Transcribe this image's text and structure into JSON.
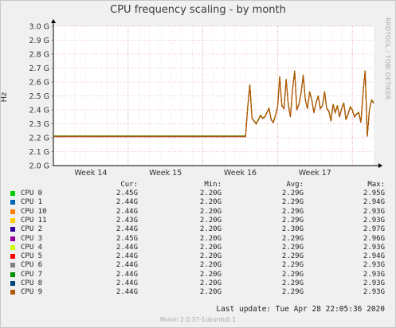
{
  "title": "CPU frequency scaling - by month",
  "side_label": "RRDTOOL / TOBI OETIKER",
  "footer": "Munin 2.0.37-1ubuntu0.1",
  "last_update": "Last update: Tue Apr 28 22:05:36 2020",
  "legend_headers": {
    "cur": "Cur:",
    "min": "Min:",
    "avg": "Avg:",
    "max": "Max:"
  },
  "legend": [
    {
      "name": "CPU 0",
      "color": "#00cc00",
      "cur": "2.45G",
      "min": "2.20G",
      "avg": "2.29G",
      "max": "2.95G"
    },
    {
      "name": "CPU 1",
      "color": "#0066b3",
      "cur": "2.44G",
      "min": "2.20G",
      "avg": "2.29G",
      "max": "2.94G"
    },
    {
      "name": "CPU 10",
      "color": "#ff8000",
      "cur": "2.44G",
      "min": "2.20G",
      "avg": "2.29G",
      "max": "2.93G"
    },
    {
      "name": "CPU 11",
      "color": "#ffcc00",
      "cur": "2.43G",
      "min": "2.20G",
      "avg": "2.29G",
      "max": "2.93G"
    },
    {
      "name": "CPU 2",
      "color": "#330099",
      "cur": "2.44G",
      "min": "2.20G",
      "avg": "2.30G",
      "max": "2.97G"
    },
    {
      "name": "CPU 3",
      "color": "#990099",
      "cur": "2.45G",
      "min": "2.20G",
      "avg": "2.29G",
      "max": "2.96G"
    },
    {
      "name": "CPU 4",
      "color": "#ccff00",
      "cur": "2.44G",
      "min": "2.20G",
      "avg": "2.29G",
      "max": "2.93G"
    },
    {
      "name": "CPU 5",
      "color": "#ff0000",
      "cur": "2.44G",
      "min": "2.20G",
      "avg": "2.29G",
      "max": "2.94G"
    },
    {
      "name": "CPU 6",
      "color": "#808080",
      "cur": "2.44G",
      "min": "2.20G",
      "avg": "2.29G",
      "max": "2.93G"
    },
    {
      "name": "CPU 7",
      "color": "#008f00",
      "cur": "2.44G",
      "min": "2.20G",
      "avg": "2.29G",
      "max": "2.93G"
    },
    {
      "name": "CPU 8",
      "color": "#00487d",
      "cur": "2.44G",
      "min": "2.20G",
      "avg": "2.29G",
      "max": "2.93G"
    },
    {
      "name": "CPU 9",
      "color": "#b35a00",
      "cur": "2.44G",
      "min": "2.20G",
      "avg": "2.29G",
      "max": "2.93G"
    }
  ],
  "chart_data": {
    "type": "line",
    "title": "CPU frequency scaling - by month",
    "ylabel": "Hz",
    "ylim": [
      2.0,
      3.0
    ],
    "yunit": "G",
    "yticks": [
      "2.0 G",
      "2.1 G",
      "2.2 G",
      "2.3 G",
      "2.4 G",
      "2.5 G",
      "2.6 G",
      "2.7 G",
      "2.8 G",
      "2.9 G",
      "3.0 G"
    ],
    "xlim": [
      0,
      30
    ],
    "xticks": [
      {
        "at": 3.5,
        "label": "Week 14"
      },
      {
        "at": 10.5,
        "label": "Week 15"
      },
      {
        "at": 17.5,
        "label": "Week 16"
      },
      {
        "at": 24.5,
        "label": "Week 17"
      }
    ],
    "grid": true,
    "x": [
      0,
      1,
      2,
      3,
      4,
      5,
      6,
      7,
      8,
      9,
      10,
      11,
      12,
      13,
      14,
      15,
      16,
      17,
      18,
      18.2,
      18.4,
      18.6,
      18.8,
      19.0,
      19.2,
      19.4,
      19.6,
      19.8,
      20.0,
      20.2,
      20.4,
      20.6,
      20.8,
      21.0,
      21.2,
      21.4,
      21.6,
      21.8,
      22.0,
      22.2,
      22.4,
      22.6,
      22.8,
      23.0,
      23.2,
      23.4,
      23.6,
      23.8,
      24.0,
      24.2,
      24.4,
      24.6,
      24.8,
      25.0,
      25.2,
      25.4,
      25.6,
      25.8,
      26.0,
      26.2,
      26.4,
      26.6,
      26.8,
      27.0,
      27.2,
      27.4,
      27.6,
      27.8,
      28.0,
      28.2,
      28.4,
      28.6,
      28.8,
      29.0,
      29.2,
      29.4,
      29.6,
      29.8,
      30.0
    ],
    "series": [
      {
        "name": "CPU 9",
        "values": [
          2.21,
          2.21,
          2.21,
          2.21,
          2.21,
          2.21,
          2.21,
          2.21,
          2.21,
          2.21,
          2.21,
          2.21,
          2.21,
          2.21,
          2.21,
          2.21,
          2.21,
          2.21,
          2.21,
          2.42,
          2.58,
          2.34,
          2.32,
          2.3,
          2.33,
          2.36,
          2.34,
          2.35,
          2.38,
          2.41,
          2.33,
          2.31,
          2.36,
          2.42,
          2.64,
          2.43,
          2.41,
          2.62,
          2.44,
          2.35,
          2.55,
          2.68,
          2.4,
          2.44,
          2.52,
          2.65,
          2.47,
          2.41,
          2.53,
          2.47,
          2.38,
          2.45,
          2.5,
          2.41,
          2.43,
          2.53,
          2.41,
          2.39,
          2.32,
          2.44,
          2.38,
          2.43,
          2.35,
          2.41,
          2.45,
          2.33,
          2.37,
          2.42,
          2.4,
          2.35,
          2.37,
          2.38,
          2.31,
          2.52,
          2.68,
          2.21,
          2.4,
          2.47,
          2.45
        ]
      }
    ]
  }
}
